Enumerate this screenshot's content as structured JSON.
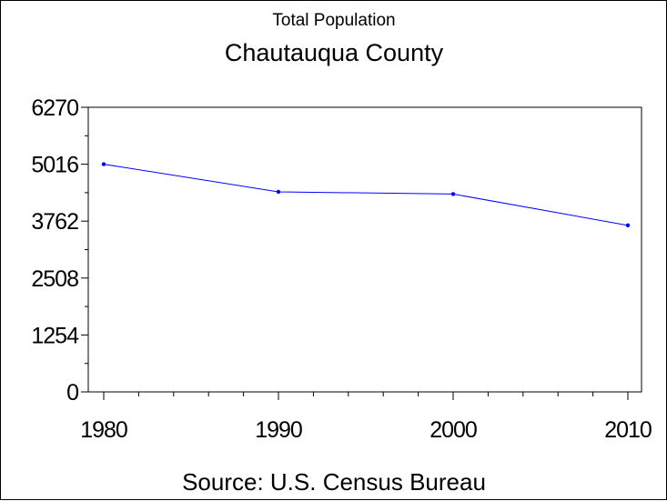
{
  "chart_data": {
    "type": "line",
    "title": "Chautauqua County",
    "subtitle": "Total Population",
    "footnote": "Source: U.S. Census Bureau",
    "xlabel": "",
    "ylabel": "",
    "x": [
      1980,
      1990,
      2000,
      2010
    ],
    "x_ticks": [
      "1980",
      "1990",
      "2000",
      "2010"
    ],
    "xlim": [
      1980,
      2010
    ],
    "y_ticks": [
      "0",
      "1254",
      "2508",
      "3762",
      "5016",
      "6270"
    ],
    "ylim": [
      0,
      6270
    ],
    "series": [
      {
        "values": [
          5016,
          4407,
          4359,
          3669
        ]
      }
    ],
    "line_color": "#0000ff",
    "grid": false,
    "legend": "none"
  }
}
